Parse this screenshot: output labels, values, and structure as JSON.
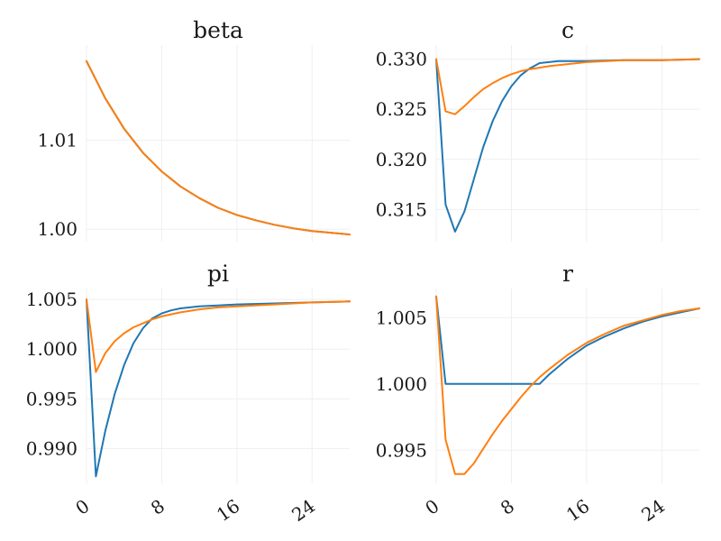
{
  "colors": {
    "series_blue": "#1f77b4",
    "series_orange": "#ff7f0e",
    "grid": "#efefef"
  },
  "chart_data": [
    {
      "type": "line",
      "title": "beta",
      "xlim": [
        0,
        28
      ],
      "ylim": [
        0.9986,
        1.0207
      ],
      "xticks": [
        0,
        8,
        16,
        24
      ],
      "show_xticklabels": false,
      "yticks": [
        1.0,
        1.01
      ],
      "ytick_labels": [
        "1.00",
        "1.01"
      ],
      "grid": true,
      "series": [
        {
          "color": "#1f77b4",
          "x": [
            0,
            2,
            4,
            6,
            8,
            10,
            12,
            14,
            16,
            18,
            20,
            22,
            24,
            26,
            28
          ],
          "y": [
            1.0189,
            1.0147,
            1.0113,
            1.0086,
            1.0065,
            1.0048,
            1.0035,
            1.0024,
            1.0016,
            1.001,
            1.0005,
            1.0001,
            0.9998,
            0.9996,
            0.9994
          ]
        },
        {
          "color": "#ff7f0e",
          "x": [
            0,
            2,
            4,
            6,
            8,
            10,
            12,
            14,
            16,
            18,
            20,
            22,
            24,
            26,
            28
          ],
          "y": [
            1.0189,
            1.0147,
            1.0113,
            1.0086,
            1.0065,
            1.0048,
            1.0035,
            1.0024,
            1.0016,
            1.001,
            1.0005,
            1.0001,
            0.9998,
            0.9996,
            0.9994
          ]
        }
      ]
    },
    {
      "type": "line",
      "title": "c",
      "xlim": [
        0,
        28
      ],
      "ylim": [
        0.3118,
        0.3314
      ],
      "xticks": [
        0,
        8,
        16,
        24
      ],
      "show_xticklabels": false,
      "yticks": [
        0.315,
        0.32,
        0.325,
        0.33
      ],
      "ytick_labels": [
        "0.315",
        "0.320",
        "0.325",
        "0.330"
      ],
      "grid": true,
      "series": [
        {
          "color": "#1f77b4",
          "x": [
            0,
            1,
            2,
            3,
            4,
            5,
            6,
            7,
            8,
            9,
            10,
            11,
            12,
            13,
            14,
            16,
            20,
            24,
            28
          ],
          "y": [
            0.33,
            0.3155,
            0.3128,
            0.3148,
            0.318,
            0.3212,
            0.3238,
            0.3258,
            0.3273,
            0.3284,
            0.3291,
            0.3296,
            0.3297,
            0.3298,
            0.3298,
            0.3298,
            0.3299,
            0.3299,
            0.33
          ]
        },
        {
          "color": "#ff7f0e",
          "x": [
            0,
            1,
            2,
            3,
            4,
            5,
            6,
            7,
            8,
            9,
            10,
            12,
            14,
            16,
            20,
            24,
            28
          ],
          "y": [
            0.33,
            0.3248,
            0.3245,
            0.3253,
            0.3262,
            0.327,
            0.3276,
            0.3281,
            0.3285,
            0.3288,
            0.329,
            0.3293,
            0.3295,
            0.3297,
            0.3299,
            0.3299,
            0.33
          ]
        }
      ]
    },
    {
      "type": "line",
      "title": "pi",
      "xlim": [
        0,
        28
      ],
      "ylim": [
        0.9865,
        1.0061
      ],
      "xticks": [
        0,
        8,
        16,
        24
      ],
      "xtick_labels": [
        "0",
        "8",
        "16",
        "24"
      ],
      "show_xticklabels": true,
      "yticks": [
        0.99,
        0.995,
        1.0,
        1.005
      ],
      "ytick_labels": [
        "0.990",
        "0.995",
        "1.000",
        "1.005"
      ],
      "grid": true,
      "series": [
        {
          "color": "#1f77b4",
          "x": [
            0,
            1,
            2,
            3,
            4,
            5,
            6,
            7,
            8,
            9,
            10,
            11,
            12,
            14,
            16,
            20,
            24,
            28
          ],
          "y": [
            1.005,
            0.9872,
            0.9918,
            0.9955,
            0.9984,
            1.0006,
            1.0021,
            1.0031,
            1.0036,
            1.0039,
            1.0041,
            1.0042,
            1.0043,
            1.0044,
            1.0045,
            1.0046,
            1.0047,
            1.0048
          ]
        },
        {
          "color": "#ff7f0e",
          "x": [
            0,
            1,
            2,
            3,
            4,
            5,
            6,
            7,
            8,
            10,
            12,
            14,
            16,
            20,
            24,
            28
          ],
          "y": [
            1.005,
            0.9977,
            0.9996,
            1.0008,
            1.0016,
            1.0022,
            1.0026,
            1.003,
            1.0033,
            1.0037,
            1.004,
            1.0042,
            1.0043,
            1.0045,
            1.0047,
            1.0048
          ]
        }
      ]
    },
    {
      "type": "line",
      "title": "r",
      "xlim": [
        0,
        28
      ],
      "ylim": [
        0.9925,
        1.0072
      ],
      "xticks": [
        0,
        8,
        16,
        24
      ],
      "xtick_labels": [
        "0",
        "8",
        "16",
        "24"
      ],
      "show_xticklabels": true,
      "yticks": [
        0.995,
        1.0,
        1.005
      ],
      "ytick_labels": [
        "0.995",
        "1.000",
        "1.005"
      ],
      "grid": true,
      "series": [
        {
          "color": "#1f77b4",
          "x": [
            0,
            1,
            2,
            4,
            6,
            8,
            10,
            11,
            12,
            14,
            16,
            18,
            20,
            22,
            24,
            26,
            28
          ],
          "y": [
            1.0066,
            1.0,
            1.0,
            1.0,
            1.0,
            1.0,
            1.0,
            1.0,
            1.0007,
            1.0019,
            1.0029,
            1.0036,
            1.0042,
            1.0047,
            1.0051,
            1.0054,
            1.0057
          ]
        },
        {
          "color": "#ff7f0e",
          "x": [
            0,
            1,
            2,
            3,
            4,
            5,
            6,
            7,
            8,
            9,
            10,
            11,
            12,
            14,
            16,
            18,
            20,
            22,
            24,
            26,
            28
          ],
          "y": [
            1.0066,
            0.9958,
            0.9932,
            0.9932,
            0.994,
            0.9951,
            0.9962,
            0.9972,
            0.9981,
            0.999,
            0.9998,
            1.0005,
            1.0011,
            1.0022,
            1.0031,
            1.0038,
            1.0044,
            1.0048,
            1.0052,
            1.0055,
            1.0057
          ]
        }
      ]
    }
  ]
}
